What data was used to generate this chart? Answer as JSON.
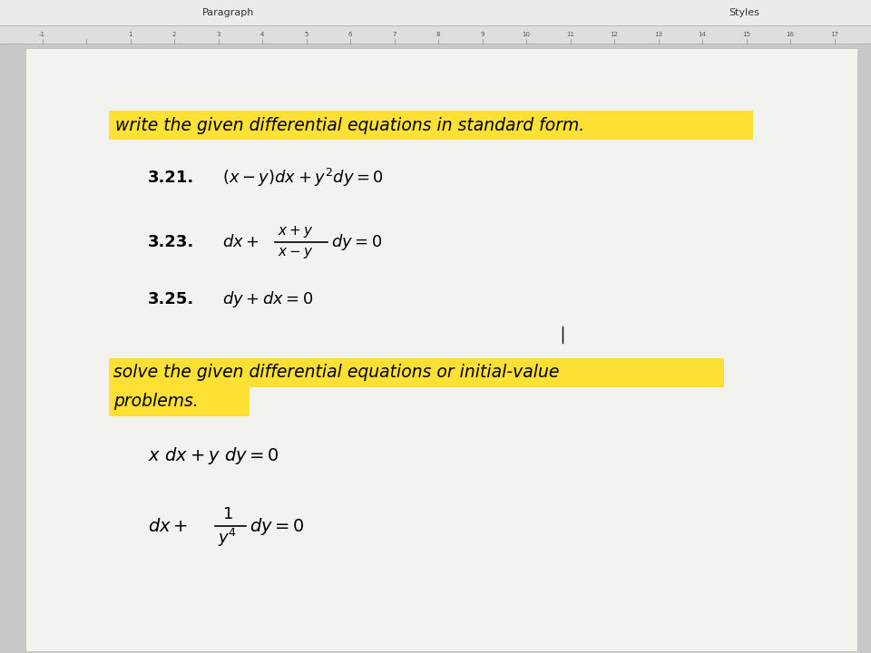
{
  "bg_color": "#c8c8c8",
  "page_bg": "#f2f2ee",
  "toolbar_bg": "#ececec",
  "highlight_color": "#FFE135",
  "ruler_bg": "#dedede",
  "title_text1": "write the given differential equations in standard form.",
  "title_text2_line1": "solve the given differential equations or initial-value",
  "title_text2_line2": "problems.",
  "paragraph_label": "Paragraph",
  "styles_label": "Styles"
}
